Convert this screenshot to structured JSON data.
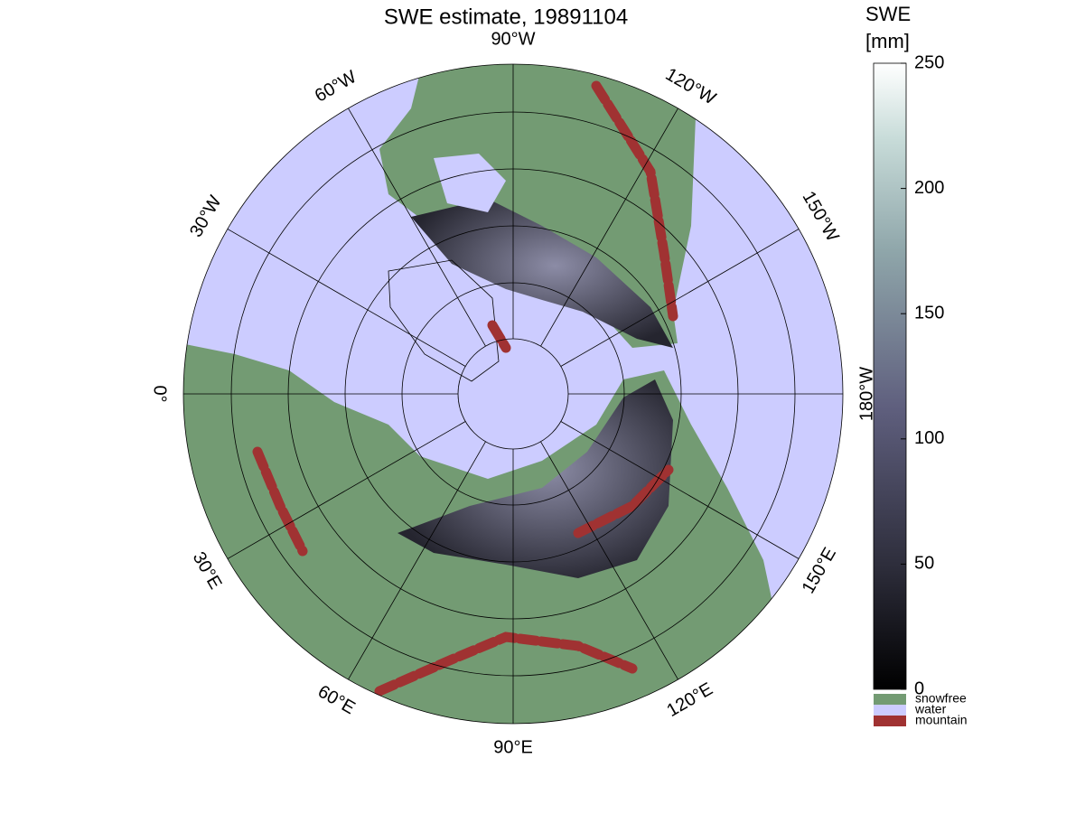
{
  "title": "SWE estimate, 19891104",
  "meridian_labels": [
    "0°",
    "30°E",
    "60°E",
    "90°E",
    "120°E",
    "150°E",
    "180°W",
    "150°W",
    "120°W",
    "90°W",
    "60°W",
    "30°W"
  ],
  "colorbar": {
    "label": [
      "SWE",
      "[mm]"
    ],
    "lim": [
      0,
      250
    ],
    "ticks": [
      0,
      50,
      100,
      150,
      200,
      250
    ]
  },
  "legend": [
    {
      "label": "snowfree",
      "color": "#739b73"
    },
    {
      "label": "water",
      "color": "#ccccff"
    },
    {
      "label": "mountain",
      "color": "#a03232"
    }
  ]
}
